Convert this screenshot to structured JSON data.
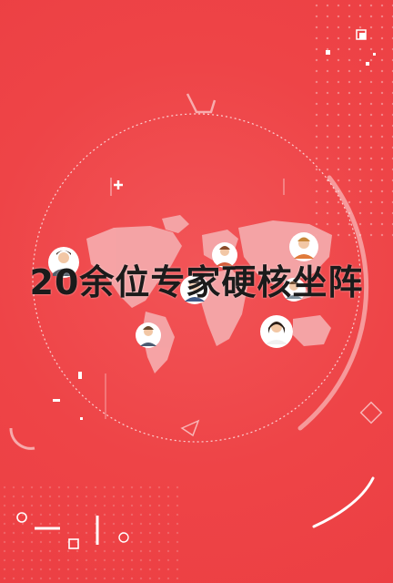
{
  "headline": "20余位专家硬核坐阵",
  "colors": {
    "background": "#f04548",
    "map": "#f5a8aa",
    "text": "#1b1b1b",
    "decor": "#ffffff"
  },
  "icons": [
    "world-map-icon",
    "expert-avatar-icon",
    "diamond-outline-icon",
    "triangle-outline-icon",
    "plus-icon"
  ]
}
